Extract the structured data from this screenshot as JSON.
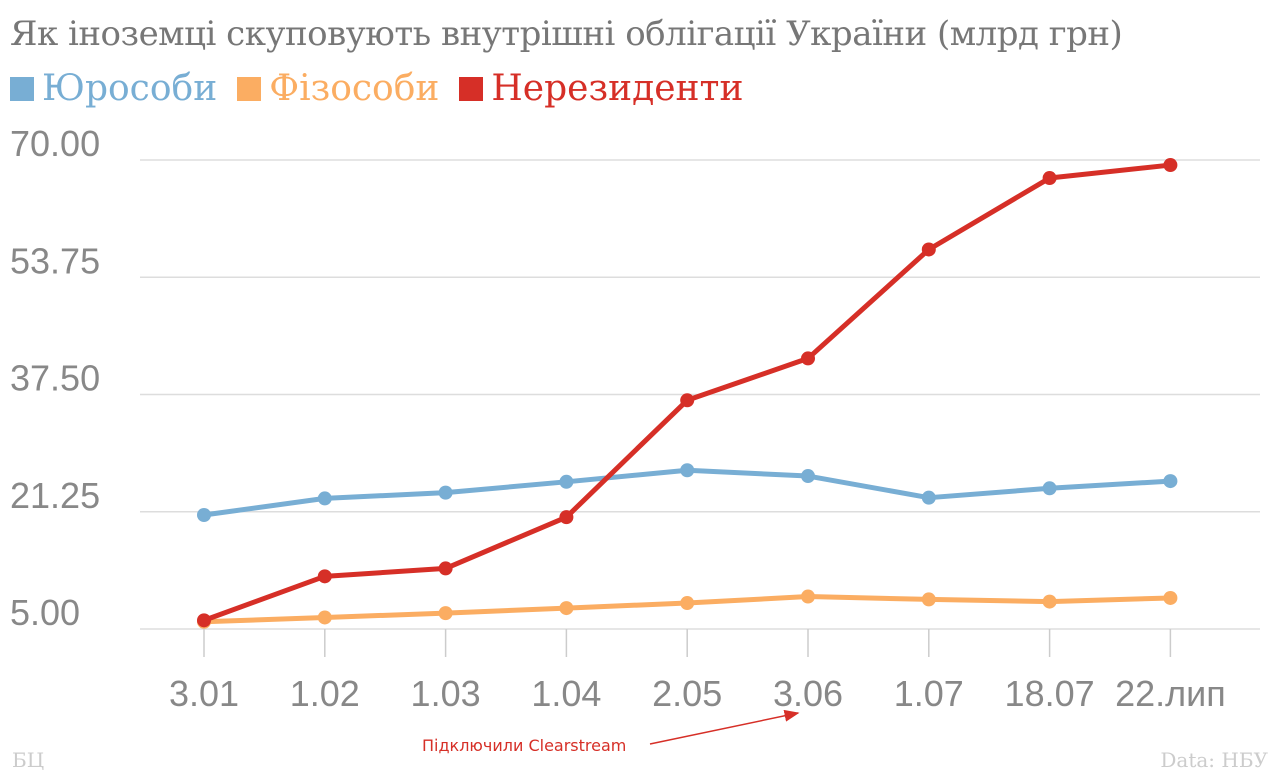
{
  "chart_data": {
    "type": "line",
    "title": "Як іноземці скуповують внутрішні облігації України (млрд грн)",
    "categories": [
      "3.01",
      "1.02",
      "1.03",
      "1.04",
      "2.05",
      "3.06",
      "1.07",
      "18.07",
      "22.лип"
    ],
    "ylim": [
      5,
      70
    ],
    "yticks": [
      "70.00",
      "53.75",
      "37.50",
      "21.25",
      "5.00"
    ],
    "ytick_values": [
      70,
      53.75,
      37.5,
      21.25,
      5
    ],
    "legend_position": "top-left",
    "series": [
      {
        "name": "Юрособи",
        "color": "#78aed4",
        "values": [
          20.8,
          23.1,
          23.9,
          25.4,
          27.0,
          26.2,
          23.2,
          24.5,
          25.5
        ]
      },
      {
        "name": "Фізособи",
        "color": "#fbad62",
        "values": [
          6.0,
          6.6,
          7.2,
          7.9,
          8.6,
          9.5,
          9.1,
          8.8,
          9.3
        ]
      },
      {
        "name": "Нерезиденти",
        "color": "#d62f27",
        "values": [
          6.2,
          12.3,
          13.4,
          20.5,
          36.7,
          42.5,
          57.6,
          67.5,
          69.3
        ]
      }
    ],
    "annotation": {
      "text": "Підключили Clearstream",
      "target_category": "3.06"
    }
  },
  "footer": {
    "source_left": "БЦ",
    "source_right": "Data: НБУ"
  }
}
